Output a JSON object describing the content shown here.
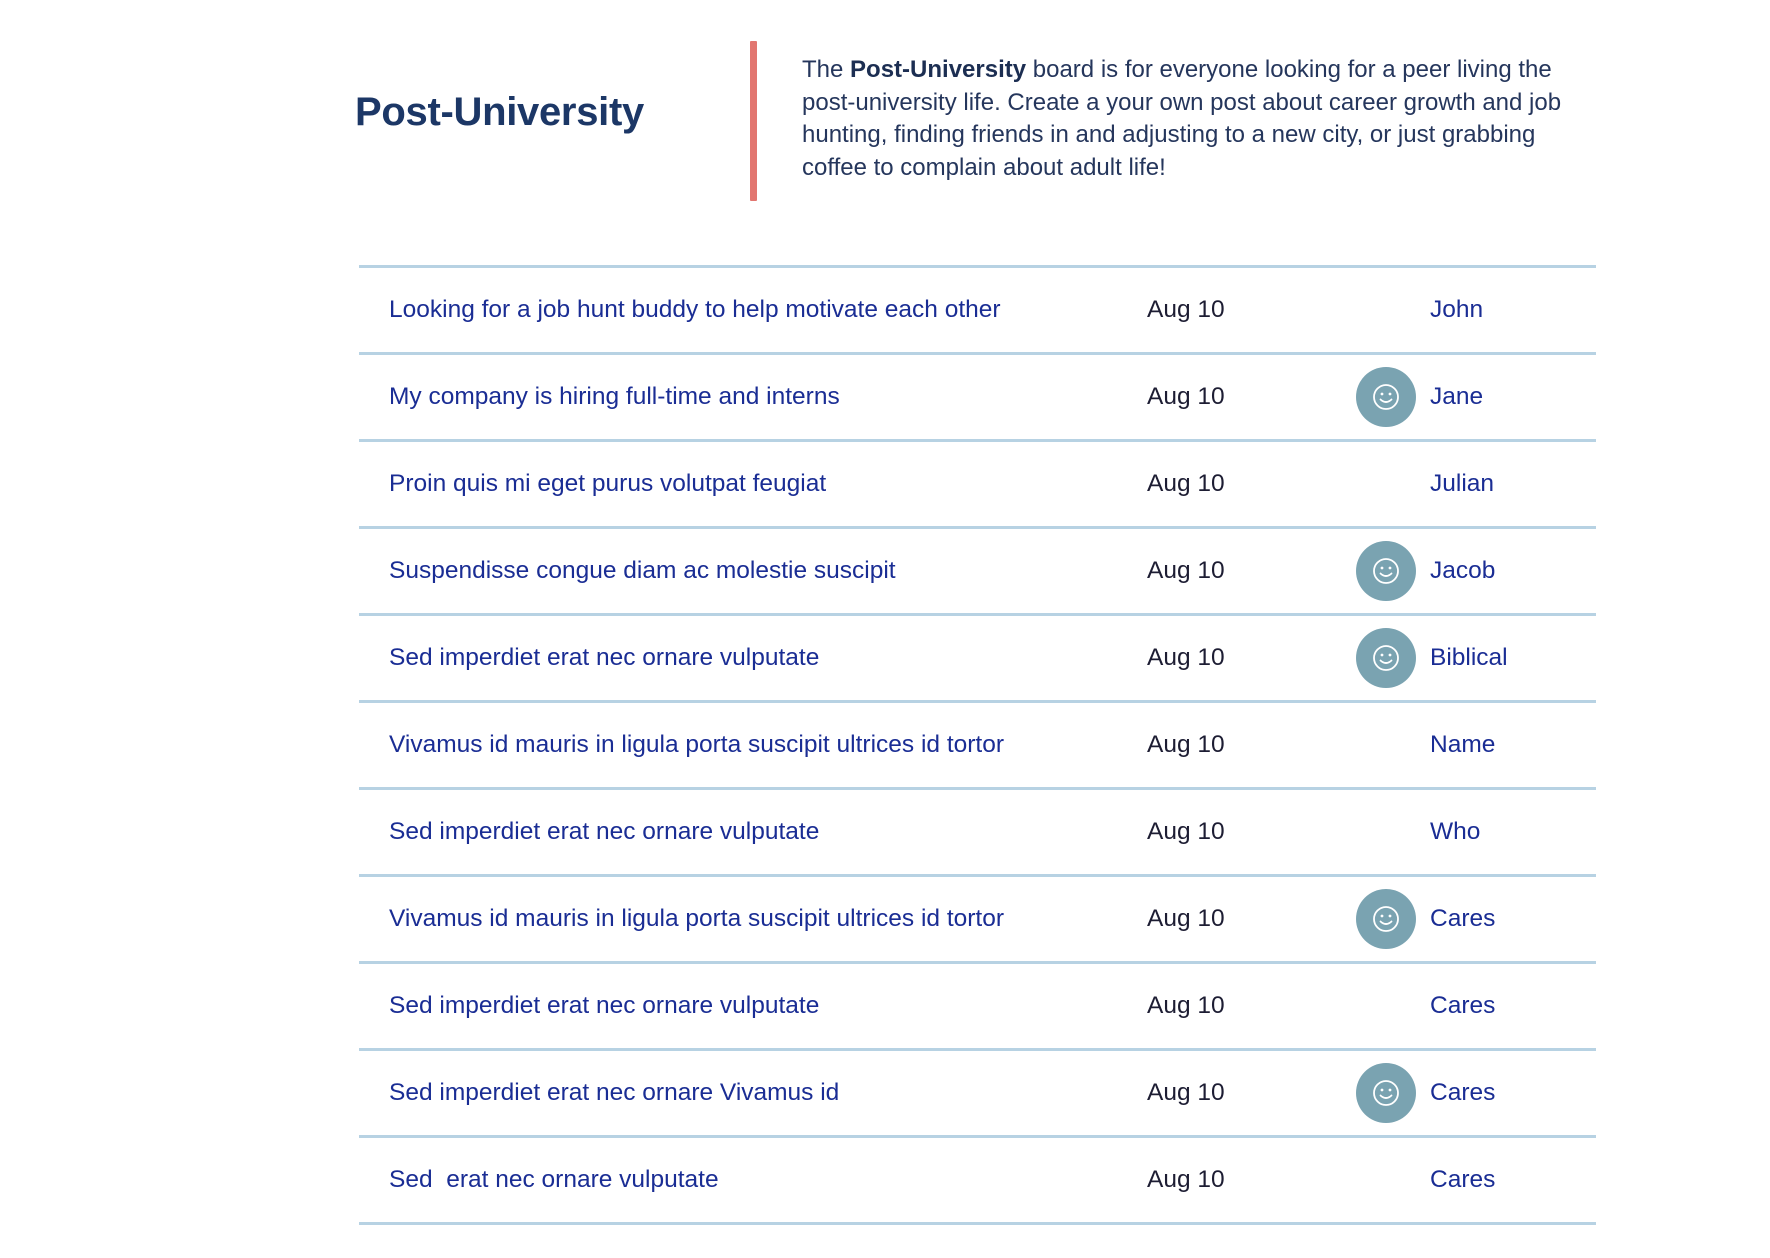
{
  "board": {
    "title": "Post-University",
    "description_prefix": "The ",
    "description_bold": "Post-University",
    "description_suffix": " board is for everyone looking for a peer living the post-university life. Create a your own post about career growth and job hunting, finding friends in and adjusting to a new city, or just grabbing coffee to complain about adult life!"
  },
  "colors": {
    "accent_bar": "#e27670",
    "title": "#1c3766",
    "link": "#1a2d94",
    "divider": "#b7d2e3",
    "avatar_bg": "#7aa3b1"
  },
  "posts": [
    {
      "title": "Looking for a job hunt buddy to help motivate each other",
      "date": "Aug 10",
      "author": "John",
      "avatar": false,
      "avatar_icon": "smiley-face-icon"
    },
    {
      "title": "My company is hiring full-time and interns",
      "date": "Aug 10",
      "author": "Jane",
      "avatar": true,
      "avatar_icon": "smiley-face-icon"
    },
    {
      "title": "Proin quis mi eget purus volutpat feugiat",
      "date": "Aug 10",
      "author": "Julian",
      "avatar": false,
      "avatar_icon": "smiley-face-icon"
    },
    {
      "title": "Suspendisse congue diam ac molestie suscipit",
      "date": "Aug 10",
      "author": "Jacob",
      "avatar": true,
      "avatar_icon": "smiley-face-icon"
    },
    {
      "title": "Sed imperdiet erat nec ornare vulputate",
      "date": "Aug 10",
      "author": "Biblical",
      "avatar": true,
      "avatar_icon": "smiley-face-icon"
    },
    {
      "title": "Vivamus id mauris in ligula porta suscipit ultrices id tortor",
      "date": "Aug 10",
      "author": "Name",
      "avatar": false,
      "avatar_icon": "smiley-face-icon"
    },
    {
      "title": "Sed imperdiet erat nec ornare vulputate",
      "date": "Aug 10",
      "author": "Who",
      "avatar": false,
      "avatar_icon": "smiley-face-icon"
    },
    {
      "title": "Vivamus id mauris in ligula porta suscipit ultrices id tortor",
      "date": "Aug 10",
      "author": "Cares",
      "avatar": true,
      "avatar_icon": "smiley-face-icon"
    },
    {
      "title": "Sed imperdiet erat nec ornare vulputate",
      "date": "Aug 10",
      "author": "Cares",
      "avatar": false,
      "avatar_icon": "smiley-face-icon"
    },
    {
      "title": "Sed imperdiet erat nec ornare Vivamus id",
      "date": "Aug 10",
      "author": "Cares",
      "avatar": true,
      "avatar_icon": "smiley-face-icon"
    },
    {
      "title": "Sed  erat nec ornare vulputate",
      "date": "Aug 10",
      "author": "Cares",
      "avatar": false,
      "avatar_icon": "smiley-face-icon"
    }
  ]
}
